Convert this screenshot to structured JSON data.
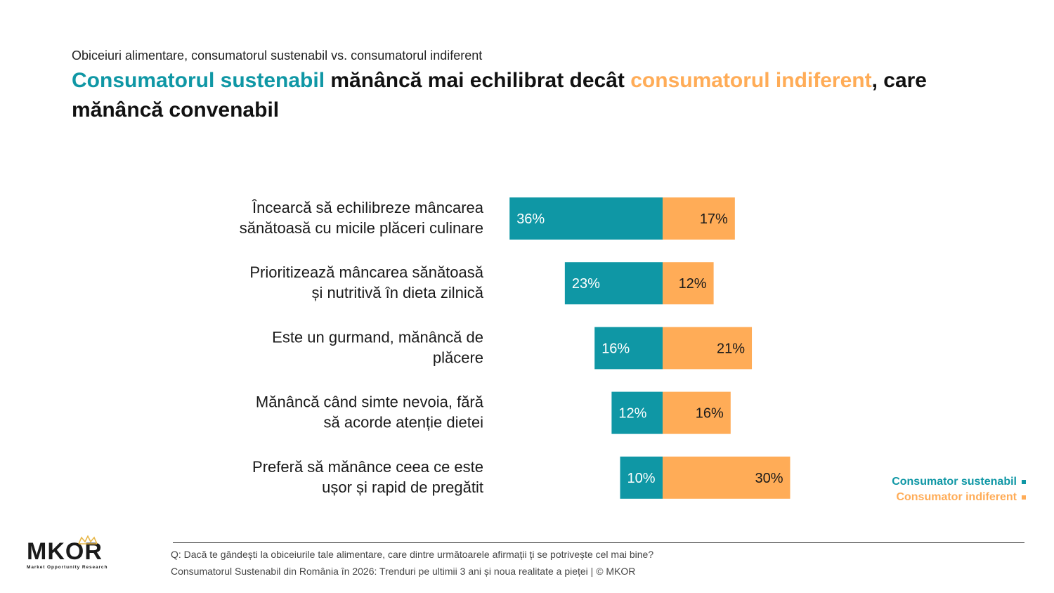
{
  "header": {
    "subtitle": "Obiceiuri alimentare, consumatorul sustenabil vs. consumatorul indiferent",
    "headline_part1": "Consumatorul sustenabil",
    "headline_part2": " mănâncă mai echilibrat decât ",
    "headline_part3": "consumatorul indiferent",
    "headline_part4": ", care mănâncă convenabil"
  },
  "colors": {
    "teal": "#0f97a5",
    "orange": "#ffac57"
  },
  "chart_data": {
    "type": "bar",
    "orientation": "horizontal-diverging",
    "categories": [
      [
        "Încearcă să echilibreze mâncarea",
        "sănătoasă cu micile plăceri culinare"
      ],
      [
        "Prioritizează mâncarea sănătoasă",
        "și nutritivă în dieta zilnică"
      ],
      [
        "Este un gurmand, mănâncă de",
        "plăcere"
      ],
      [
        "Mănâncă când simte nevoia, fără",
        "să acorde atenție dietei"
      ],
      [
        "Preferă să mănânce ceea ce este",
        "ușor și rapid de pregătit"
      ]
    ],
    "series": [
      {
        "name": "Consumator sustenabil",
        "values": [
          36,
          23,
          16,
          12,
          10
        ],
        "labels": [
          "36%",
          "23%",
          "16%",
          "12%",
          "10%"
        ],
        "color": "#0f97a5"
      },
      {
        "name": "Consumator indiferent",
        "values": [
          17,
          12,
          21,
          16,
          30
        ],
        "labels": [
          "17%",
          "12%",
          "21%",
          "16%",
          "30%"
        ],
        "color": "#ffac57"
      }
    ],
    "legend_position": "bottom-right"
  },
  "legend": {
    "item1": "Consumator sustenabil",
    "item2": "Consumator indiferent"
  },
  "logo": {
    "text": "MKOR",
    "tagline": "Market Opportunity Research"
  },
  "footer": {
    "question": "Q: Dacă te gândești la obiceiurile tale alimentare, care dintre următoarele afirmații ți se potrivește cel mai bine?",
    "source": "Consumatorul Sustenabil din România în 2026: Trenduri pe ultimii 3 ani și noua realitate a pieței | © MKOR"
  }
}
